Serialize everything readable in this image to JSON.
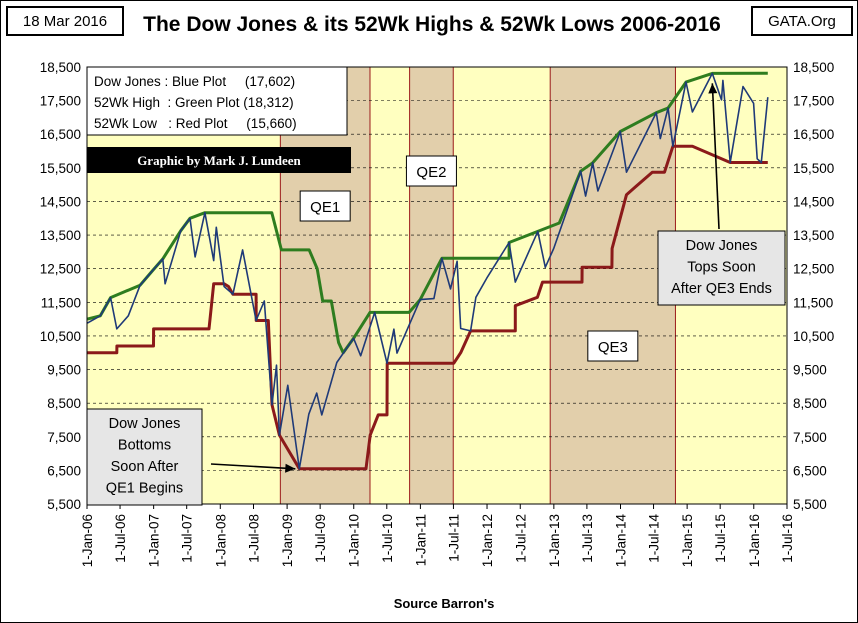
{
  "header": {
    "date": "18 Mar 2016",
    "title": "The Dow Jones & its 52Wk Highs & 52Wk Lows 2006-2016",
    "site": "GATA.Org"
  },
  "chart_data": {
    "type": "line",
    "title": "The Dow Jones & its 52Wk Highs & 52Wk Lows 2006-2016",
    "xlabel": "Source Barron's",
    "ylabel": "",
    "ylim": [
      5500,
      18500
    ],
    "xlim": [
      "2006-01-01",
      "2016-07-01"
    ],
    "y_ticks": [
      "18,500",
      "17,500",
      "16,500",
      "15,500",
      "14,500",
      "13,500",
      "12,500",
      "11,500",
      "10,500",
      "9,500",
      "8,500",
      "7,500",
      "6,500",
      "5,500"
    ],
    "x_ticks": [
      "1-Jan-06",
      "1-Jul-06",
      "1-Jan-07",
      "1-Jul-07",
      "1-Jan-08",
      "1-Jul-08",
      "1-Jan-09",
      "1-Jul-09",
      "1-Jan-10",
      "1-Jul-10",
      "1-Jan-11",
      "1-Jul-11",
      "1-Jan-12",
      "1-Jul-12",
      "1-Jan-13",
      "1-Jul-13",
      "1-Jan-14",
      "1-Jul-14",
      "1-Jan-15",
      "1-Jul-15",
      "1-Jan-16",
      "1-Jul-16"
    ],
    "legend": {
      "lines": [
        "Dow Jones : Blue Plot     (17,602)",
        "52Wk High  : Green Plot (18,312)",
        "52Wk Low   : Red Plot     (15,660)"
      ],
      "placement": "top-left"
    },
    "credit": "Graphic by Mark J. Lundeen",
    "shaded_periods": [
      {
        "label": "QE1",
        "start": "2008-11-25",
        "end": "2010-03-31"
      },
      {
        "label": "QE2",
        "start": "2010-11-03",
        "end": "2011-06-30"
      },
      {
        "label": "QE3",
        "start": "2012-12-12",
        "end": "2014-10-29"
      }
    ],
    "annotations": [
      {
        "lines": [
          "Dow Jones",
          "Bottoms",
          "Soon After",
          "QE1 Begins"
        ],
        "target": {
          "x": "2009-03-09",
          "y": 6547
        }
      },
      {
        "lines": [
          "Dow Jones",
          "Tops Soon",
          "After QE3 Ends"
        ],
        "target": {
          "x": "2015-05-19",
          "y": 18312
        }
      }
    ],
    "series": [
      {
        "name": "Dow Jones",
        "color": "#1f3a78",
        "points": [
          [
            "2006-01-03",
            10880
          ],
          [
            "2006-03-15",
            11100
          ],
          [
            "2006-05-10",
            11640
          ],
          [
            "2006-06-13",
            10710
          ],
          [
            "2006-08-15",
            11100
          ],
          [
            "2006-10-19",
            12010
          ],
          [
            "2006-12-29",
            12460
          ],
          [
            "2007-02-20",
            12790
          ],
          [
            "2007-03-05",
            12050
          ],
          [
            "2007-05-30",
            13630
          ],
          [
            "2007-07-19",
            14000
          ],
          [
            "2007-08-16",
            12850
          ],
          [
            "2007-10-09",
            14165
          ],
          [
            "2007-11-26",
            12740
          ],
          [
            "2007-12-10",
            13730
          ],
          [
            "2008-01-22",
            11970
          ],
          [
            "2008-03-10",
            11740
          ],
          [
            "2008-05-02",
            13060
          ],
          [
            "2008-07-15",
            10960
          ],
          [
            "2008-08-29",
            11540
          ],
          [
            "2008-10-10",
            8450
          ],
          [
            "2008-11-04",
            9630
          ],
          [
            "2008-11-20",
            7550
          ],
          [
            "2009-01-05",
            9030
          ],
          [
            "2009-03-09",
            6550
          ],
          [
            "2009-04-30",
            8170
          ],
          [
            "2009-06-12",
            8800
          ],
          [
            "2009-07-10",
            8150
          ],
          [
            "2009-09-30",
            9710
          ],
          [
            "2009-12-31",
            10430
          ],
          [
            "2010-02-08",
            9910
          ],
          [
            "2010-04-26",
            11200
          ],
          [
            "2010-07-02",
            9690
          ],
          [
            "2010-08-09",
            10700
          ],
          [
            "2010-08-26",
            9990
          ],
          [
            "2010-12-31",
            11580
          ],
          [
            "2011-03-16",
            11610
          ],
          [
            "2011-04-29",
            12810
          ],
          [
            "2011-06-15",
            11900
          ],
          [
            "2011-07-21",
            12720
          ],
          [
            "2011-08-10",
            10720
          ],
          [
            "2011-10-03",
            10650
          ],
          [
            "2011-11-01",
            11650
          ],
          [
            "2011-12-31",
            12220
          ],
          [
            "2012-05-01",
            13280
          ],
          [
            "2012-06-04",
            12100
          ],
          [
            "2012-10-05",
            13610
          ],
          [
            "2012-11-15",
            12540
          ],
          [
            "2012-12-31",
            13100
          ],
          [
            "2013-05-28",
            15400
          ],
          [
            "2013-06-24",
            14660
          ],
          [
            "2013-08-02",
            15650
          ],
          [
            "2013-08-30",
            14810
          ],
          [
            "2013-12-31",
            16580
          ],
          [
            "2014-02-03",
            15370
          ],
          [
            "2014-07-16",
            17140
          ],
          [
            "2014-08-07",
            16370
          ],
          [
            "2014-09-19",
            17280
          ],
          [
            "2014-10-15",
            16140
          ],
          [
            "2014-12-26",
            18050
          ],
          [
            "2015-01-30",
            17160
          ],
          [
            "2015-05-19",
            18310
          ],
          [
            "2015-07-08",
            17520
          ],
          [
            "2015-07-16",
            18100
          ],
          [
            "2015-08-25",
            15660
          ],
          [
            "2015-11-03",
            17920
          ],
          [
            "2015-12-31",
            17420
          ],
          [
            "2016-01-20",
            15770
          ],
          [
            "2016-02-11",
            15660
          ],
          [
            "2016-03-18",
            17602
          ]
        ]
      },
      {
        "name": "52Wk High",
        "color": "#2e7d1f",
        "points": [
          [
            "2006-01-03",
            11000
          ],
          [
            "2006-03-15",
            11100
          ],
          [
            "2006-05-10",
            11640
          ],
          [
            "2006-10-19",
            12010
          ],
          [
            "2006-12-29",
            12460
          ],
          [
            "2007-02-20",
            12790
          ],
          [
            "2007-05-30",
            13630
          ],
          [
            "2007-07-19",
            14000
          ],
          [
            "2007-10-09",
            14165
          ],
          [
            "2008-10-09",
            14165
          ],
          [
            "2008-12-01",
            13060
          ],
          [
            "2009-05-02",
            13060
          ],
          [
            "2009-06-15",
            12500
          ],
          [
            "2009-07-15",
            11540
          ],
          [
            "2009-08-31",
            11540
          ],
          [
            "2009-10-10",
            10300
          ],
          [
            "2009-11-04",
            10000
          ],
          [
            "2009-12-31",
            10430
          ],
          [
            "2010-03-31",
            11200
          ],
          [
            "2010-10-31",
            11200
          ],
          [
            "2010-12-31",
            11580
          ],
          [
            "2011-04-29",
            12810
          ],
          [
            "2012-05-01",
            12810
          ],
          [
            "2012-05-01",
            13280
          ],
          [
            "2012-10-05",
            13610
          ],
          [
            "2013-01-31",
            13860
          ],
          [
            "2013-05-28",
            15400
          ],
          [
            "2013-08-02",
            15650
          ],
          [
            "2013-12-31",
            16580
          ],
          [
            "2014-07-16",
            17140
          ],
          [
            "2014-09-19",
            17280
          ],
          [
            "2014-12-26",
            18050
          ],
          [
            "2015-05-19",
            18310
          ],
          [
            "2016-03-18",
            18312
          ]
        ]
      },
      {
        "name": "52Wk Low",
        "color": "#8b1a1a",
        "points": [
          [
            "2006-01-03",
            10000
          ],
          [
            "2006-06-13",
            10000
          ],
          [
            "2006-06-14",
            10200
          ],
          [
            "2006-12-31",
            10200
          ],
          [
            "2007-01-01",
            10710
          ],
          [
            "2007-10-31",
            10710
          ],
          [
            "2007-11-26",
            12050
          ],
          [
            "2008-01-22",
            12050
          ],
          [
            "2008-02-15",
            11970
          ],
          [
            "2008-03-10",
            11740
          ],
          [
            "2008-07-15",
            11740
          ],
          [
            "2008-07-16",
            10960
          ],
          [
            "2008-09-20",
            10960
          ],
          [
            "2008-10-10",
            8450
          ],
          [
            "2008-11-20",
            7550
          ],
          [
            "2009-03-09",
            6550
          ],
          [
            "2010-03-09",
            6550
          ],
          [
            "2010-04-01",
            7550
          ],
          [
            "2010-05-15",
            8150
          ],
          [
            "2010-07-02",
            8150
          ],
          [
            "2010-07-03",
            9690
          ],
          [
            "2011-07-03",
            9690
          ],
          [
            "2011-07-03",
            9690
          ],
          [
            "2011-08-10",
            10000
          ],
          [
            "2011-10-03",
            10650
          ],
          [
            "2012-06-04",
            10650
          ],
          [
            "2012-06-04",
            11400
          ],
          [
            "2012-10-03",
            11650
          ],
          [
            "2012-10-31",
            12100
          ],
          [
            "2013-06-04",
            12100
          ],
          [
            "2013-06-05",
            12540
          ],
          [
            "2013-11-15",
            12540
          ],
          [
            "2013-11-16",
            13100
          ],
          [
            "2014-02-03",
            14700
          ],
          [
            "2014-06-24",
            15370
          ],
          [
            "2014-08-30",
            15370
          ],
          [
            "2014-10-15",
            16140
          ],
          [
            "2015-01-30",
            16140
          ],
          [
            "2015-08-25",
            15660
          ],
          [
            "2016-03-18",
            15660
          ]
        ]
      }
    ]
  }
}
